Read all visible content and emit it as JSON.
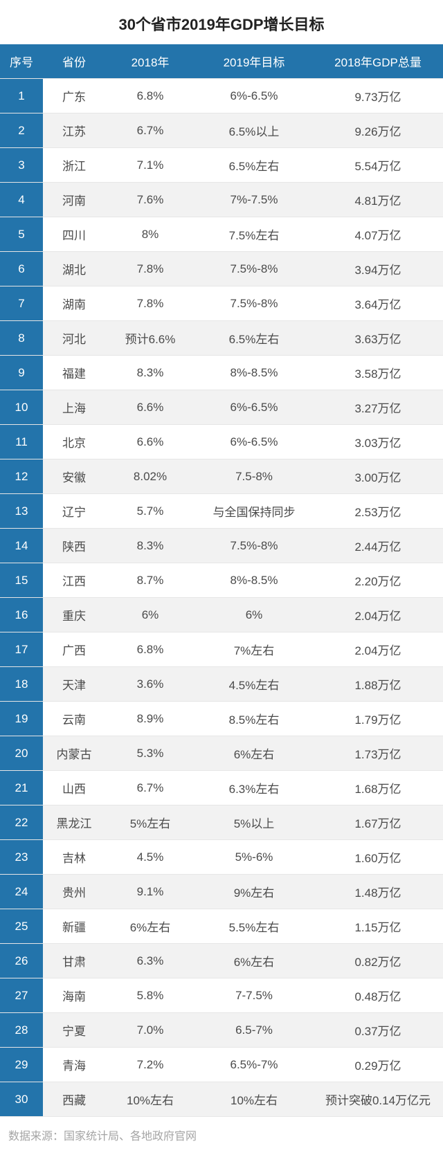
{
  "title": "30个省市2019年GDP增长目标",
  "source": "数据来源：国家统计局、各地政府官网",
  "table": {
    "header_bg": "#2374ab",
    "idx_bg": "#2374ab",
    "row_even_bg": "#ffffff",
    "row_odd_bg": "#f2f2f2",
    "text_color": "#4a4a4a",
    "title_color": "#222222",
    "title_fontsize": 22,
    "cell_fontsize": 17,
    "source_fontsize": 16,
    "columns": [
      "序号",
      "省份",
      "2018年",
      "2019年目标",
      "2018年GDP总量"
    ],
    "rows": [
      [
        "1",
        "广东",
        "6.8%",
        "6%-6.5%",
        "9.73万亿"
      ],
      [
        "2",
        "江苏",
        "6.7%",
        "6.5%以上",
        "9.26万亿"
      ],
      [
        "3",
        "浙江",
        "7.1%",
        "6.5%左右",
        "5.54万亿"
      ],
      [
        "4",
        "河南",
        "7.6%",
        "7%-7.5%",
        "4.81万亿"
      ],
      [
        "5",
        "四川",
        "8%",
        "7.5%左右",
        "4.07万亿"
      ],
      [
        "6",
        "湖北",
        "7.8%",
        "7.5%-8%",
        "3.94万亿"
      ],
      [
        "7",
        "湖南",
        "7.8%",
        "7.5%-8%",
        "3.64万亿"
      ],
      [
        "8",
        "河北",
        "预计6.6%",
        "6.5%左右",
        "3.63万亿"
      ],
      [
        "9",
        "福建",
        "8.3%",
        "8%-8.5%",
        "3.58万亿"
      ],
      [
        "10",
        "上海",
        "6.6%",
        "6%-6.5%",
        "3.27万亿"
      ],
      [
        "11",
        "北京",
        "6.6%",
        "6%-6.5%",
        "3.03万亿"
      ],
      [
        "12",
        "安徽",
        "8.02%",
        "7.5-8%",
        "3.00万亿"
      ],
      [
        "13",
        "辽宁",
        "5.7%",
        "与全国保持同步",
        "2.53万亿"
      ],
      [
        "14",
        "陕西",
        "8.3%",
        "7.5%-8%",
        "2.44万亿"
      ],
      [
        "15",
        "江西",
        "8.7%",
        "8%-8.5%",
        "2.20万亿"
      ],
      [
        "16",
        "重庆",
        "6%",
        "6%",
        "2.04万亿"
      ],
      [
        "17",
        "广西",
        "6.8%",
        "7%左右",
        "2.04万亿"
      ],
      [
        "18",
        "天津",
        "3.6%",
        "4.5%左右",
        "1.88万亿"
      ],
      [
        "19",
        "云南",
        "8.9%",
        "8.5%左右",
        "1.79万亿"
      ],
      [
        "20",
        "内蒙古",
        "5.3%",
        "6%左右",
        "1.73万亿"
      ],
      [
        "21",
        "山西",
        "6.7%",
        "6.3%左右",
        "1.68万亿"
      ],
      [
        "22",
        "黑龙江",
        "5%左右",
        "5%以上",
        "1.67万亿"
      ],
      [
        "23",
        "吉林",
        "4.5%",
        "5%-6%",
        "1.60万亿"
      ],
      [
        "24",
        "贵州",
        "9.1%",
        "9%左右",
        "1.48万亿"
      ],
      [
        "25",
        "新疆",
        "6%左右",
        "5.5%左右",
        "1.15万亿"
      ],
      [
        "26",
        "甘肃",
        "6.3%",
        "6%左右",
        "0.82万亿"
      ],
      [
        "27",
        "海南",
        "5.8%",
        "7-7.5%",
        "0.48万亿"
      ],
      [
        "28",
        "宁夏",
        "7.0%",
        "6.5-7%",
        "0.37万亿"
      ],
      [
        "29",
        "青海",
        "7.2%",
        "6.5%-7%",
        "0.29万亿"
      ],
      [
        "30",
        "西藏",
        "10%左右",
        "10%左右",
        "预计突破0.14万亿元"
      ]
    ]
  }
}
